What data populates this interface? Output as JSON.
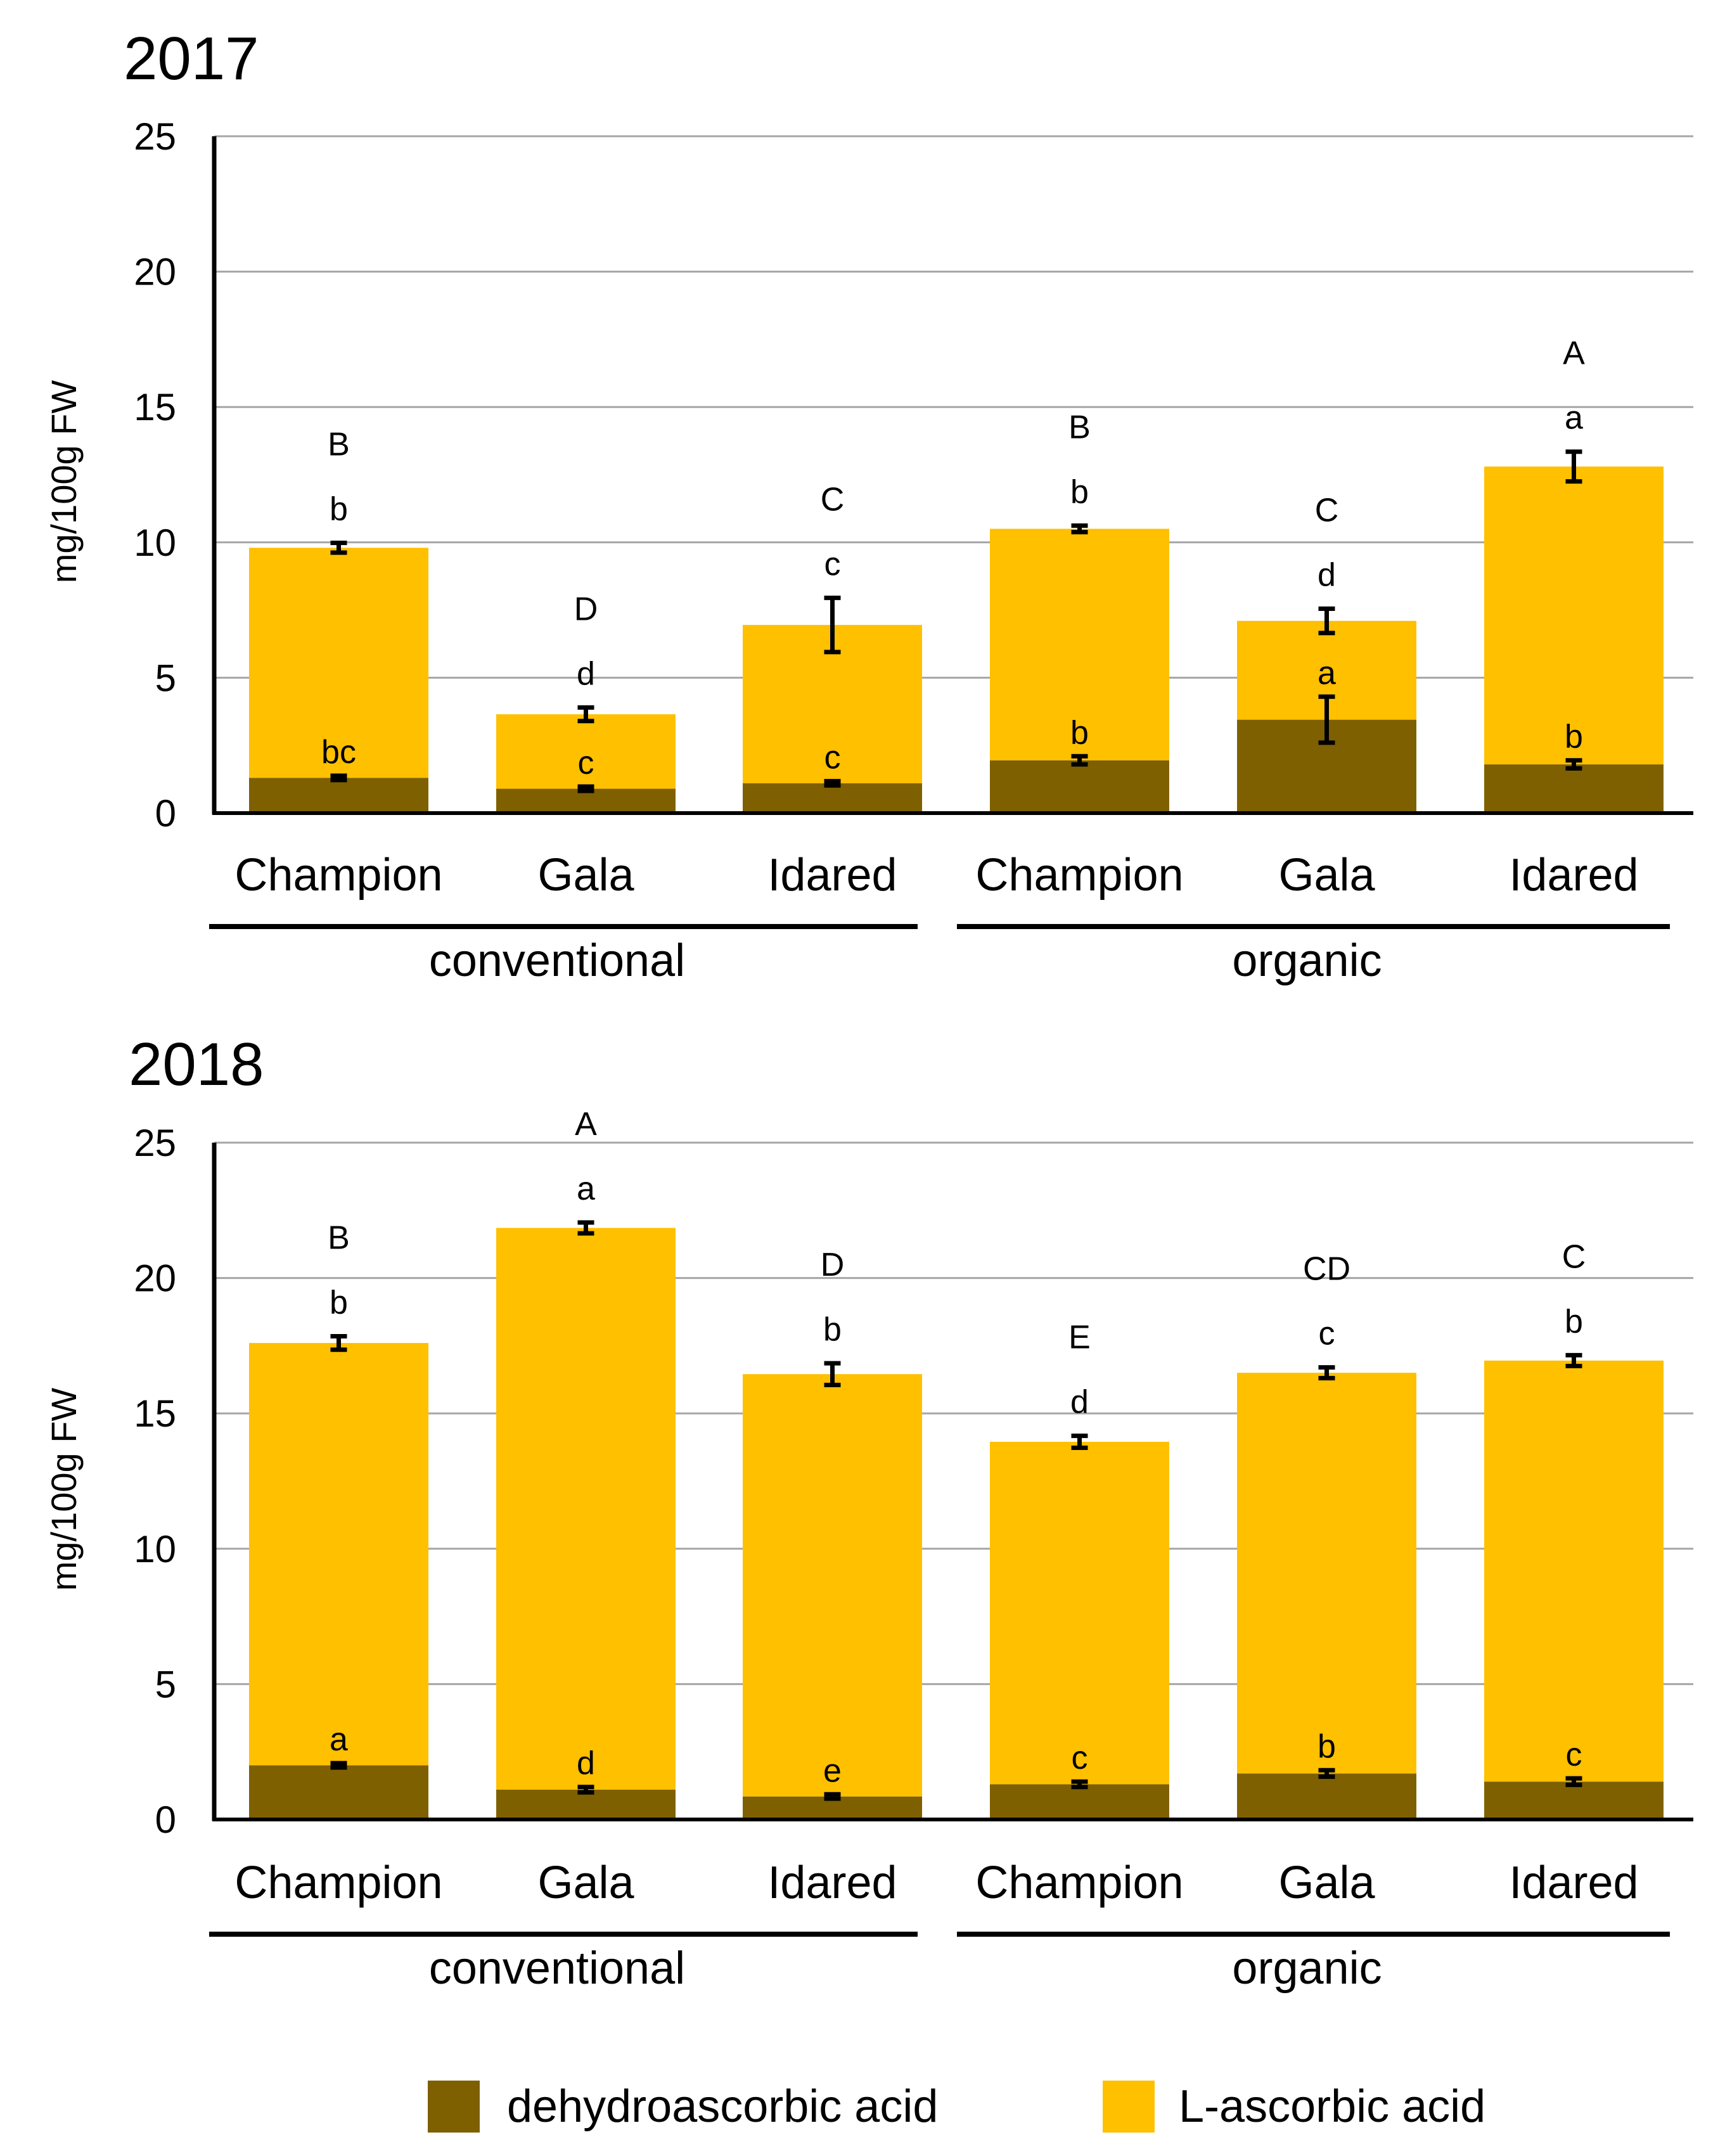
{
  "chart_data": [
    {
      "type": "bar",
      "stacked": true,
      "title": "2017",
      "ylabel": "mg/100g FW",
      "xlabel": "",
      "ylim": [
        0,
        25
      ],
      "yticks": [
        0,
        5,
        10,
        15,
        20,
        25
      ],
      "grid": true,
      "categories": [
        "Champion",
        "Gala",
        "Idared",
        "Champion",
        "Gala",
        "Idared"
      ],
      "groups": [
        {
          "name": "conventional",
          "categories": [
            0,
            1,
            2
          ]
        },
        {
          "name": "organic",
          "categories": [
            3,
            4,
            5
          ]
        }
      ],
      "series": [
        {
          "name": "dehydroascorbic acid",
          "color": "#7f6000",
          "values": [
            1.3,
            0.9,
            1.1,
            1.95,
            3.45,
            1.8
          ],
          "errors": [
            0.08,
            0.08,
            0.08,
            0.15,
            0.85,
            0.15
          ],
          "letters": [
            "bc",
            "c",
            "c",
            "b",
            "a",
            "b"
          ]
        },
        {
          "name": "L-ascorbic acid",
          "color": "#ffc000",
          "values": [
            8.5,
            2.75,
            5.85,
            8.55,
            3.65,
            11.0
          ],
          "totals": [
            9.8,
            3.65,
            6.95,
            10.5,
            7.1,
            12.8
          ],
          "errors": [
            0.18,
            0.25,
            1.0,
            0.12,
            0.45,
            0.55
          ],
          "letters": [
            "b",
            "d",
            "c",
            "b",
            "d",
            "a"
          ]
        }
      ],
      "total_letters": [
        "B",
        "D",
        "C",
        "B",
        "C",
        "A"
      ]
    },
    {
      "type": "bar",
      "stacked": true,
      "title": "2018",
      "ylabel": "mg/100g FW",
      "xlabel": "",
      "ylim": [
        0,
        25
      ],
      "yticks": [
        0,
        5,
        10,
        15,
        20,
        25
      ],
      "grid": true,
      "categories": [
        "Champion",
        "Gala",
        "Idared",
        "Champion",
        "Gala",
        "Idared"
      ],
      "groups": [
        {
          "name": "conventional",
          "categories": [
            0,
            1,
            2
          ]
        },
        {
          "name": "organic",
          "categories": [
            3,
            4,
            5
          ]
        }
      ],
      "series": [
        {
          "name": "dehydroascorbic acid",
          "color": "#7f6000",
          "values": [
            2.0,
            1.1,
            0.85,
            1.3,
            1.7,
            1.4
          ],
          "errors": [
            0.08,
            0.1,
            0.08,
            0.1,
            0.12,
            0.12
          ],
          "letters": [
            "a",
            "d",
            "e",
            "c",
            "b",
            "c"
          ]
        },
        {
          "name": "L-ascorbic acid",
          "color": "#ffc000",
          "values": [
            15.6,
            20.75,
            15.6,
            12.65,
            14.8,
            15.55
          ],
          "totals": [
            17.6,
            21.85,
            16.45,
            13.95,
            16.5,
            16.95
          ],
          "errors": [
            0.25,
            0.2,
            0.4,
            0.22,
            0.2,
            0.2
          ],
          "letters": [
            "b",
            "a",
            "b",
            "d",
            "c",
            "b"
          ]
        }
      ],
      "total_letters": [
        "B",
        "A",
        "D",
        "E",
        "CD",
        "C"
      ]
    }
  ],
  "legend": [
    {
      "label": "dehydroascorbic acid",
      "color": "#7f6000"
    },
    {
      "label": "L-ascorbic acid",
      "color": "#ffc000"
    }
  ]
}
